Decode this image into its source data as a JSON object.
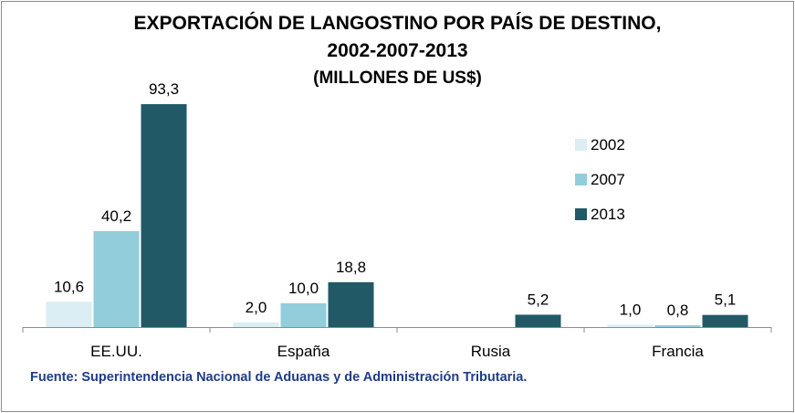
{
  "chart_data": {
    "type": "bar",
    "title": "EXPORTACIÓN DE LANGOSTINO POR PAÍS DE DESTINO,",
    "title_line2": "2002-2007-2013",
    "subtitle": "(MILLONES DE US$)",
    "categories": [
      "EE.UU.",
      "España",
      "Rusia",
      "Francia"
    ],
    "series": [
      {
        "name": "2002",
        "color": "#daeef3",
        "values": [
          10.6,
          2.0,
          null,
          1.0
        ],
        "labels": [
          "10,6",
          "2,0",
          "",
          "1,0"
        ]
      },
      {
        "name": "2007",
        "color": "#92cddc",
        "values": [
          40.2,
          10.0,
          null,
          0.8
        ],
        "labels": [
          "40,2",
          "10,0",
          "",
          "0,8"
        ]
      },
      {
        "name": "2013",
        "color": "#215967",
        "values": [
          93.3,
          18.8,
          5.2,
          5.1
        ],
        "labels": [
          "93,3",
          "18,8",
          "5,2",
          "5,1"
        ]
      }
    ],
    "ylim": [
      0,
      93.3
    ],
    "legend": "right",
    "grid": false
  },
  "source": "Fuente: Superintendencia Nacional de Aduanas y de Administración Tributaria."
}
